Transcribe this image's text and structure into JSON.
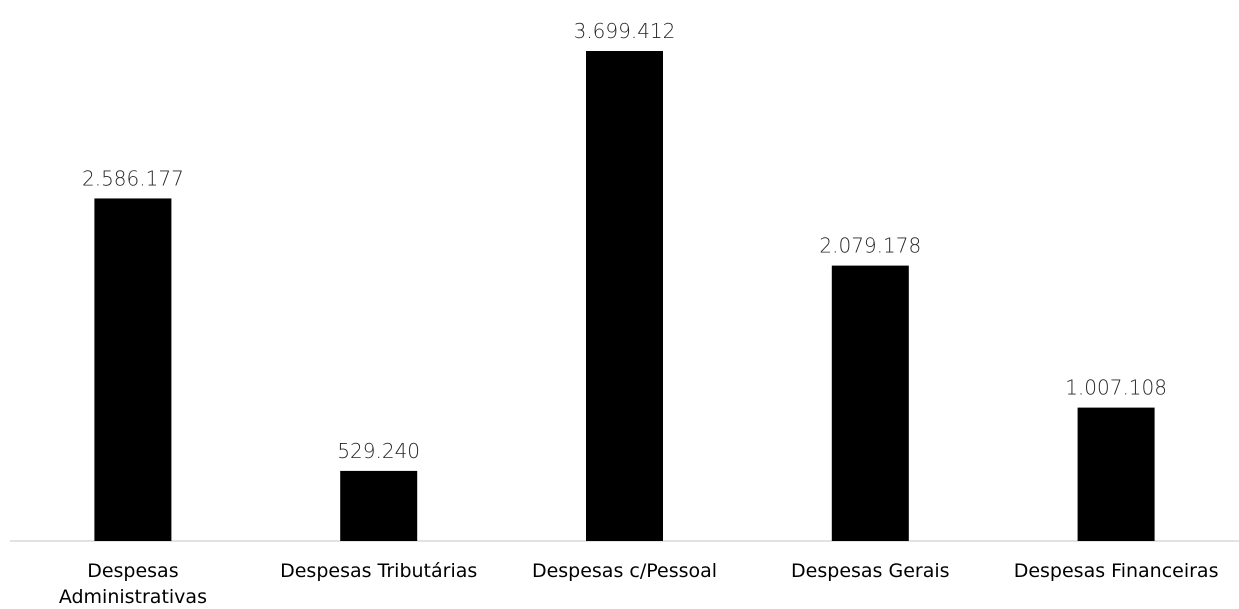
{
  "chart_data": {
    "type": "bar",
    "categories": [
      [
        "Despesas",
        "Administrativas"
      ],
      [
        "Despesas Tributárias"
      ],
      [
        "Despesas c/Pessoal"
      ],
      [
        "Despesas Gerais"
      ],
      [
        "Despesas Financeiras"
      ]
    ],
    "values": [
      2586177,
      529240,
      3699412,
      2079178,
      1007108
    ],
    "data_labels": [
      "2.586.177",
      "529.240",
      "3.699.412",
      "2.079.178",
      "1.007.108"
    ],
    "title": "",
    "xlabel": "",
    "ylabel": "",
    "ylim": [
      0,
      3699412
    ],
    "grid": false,
    "legend": "none",
    "colors": {
      "bar": "#000000",
      "axis": "#d9d9d9",
      "label": "#262626"
    }
  }
}
